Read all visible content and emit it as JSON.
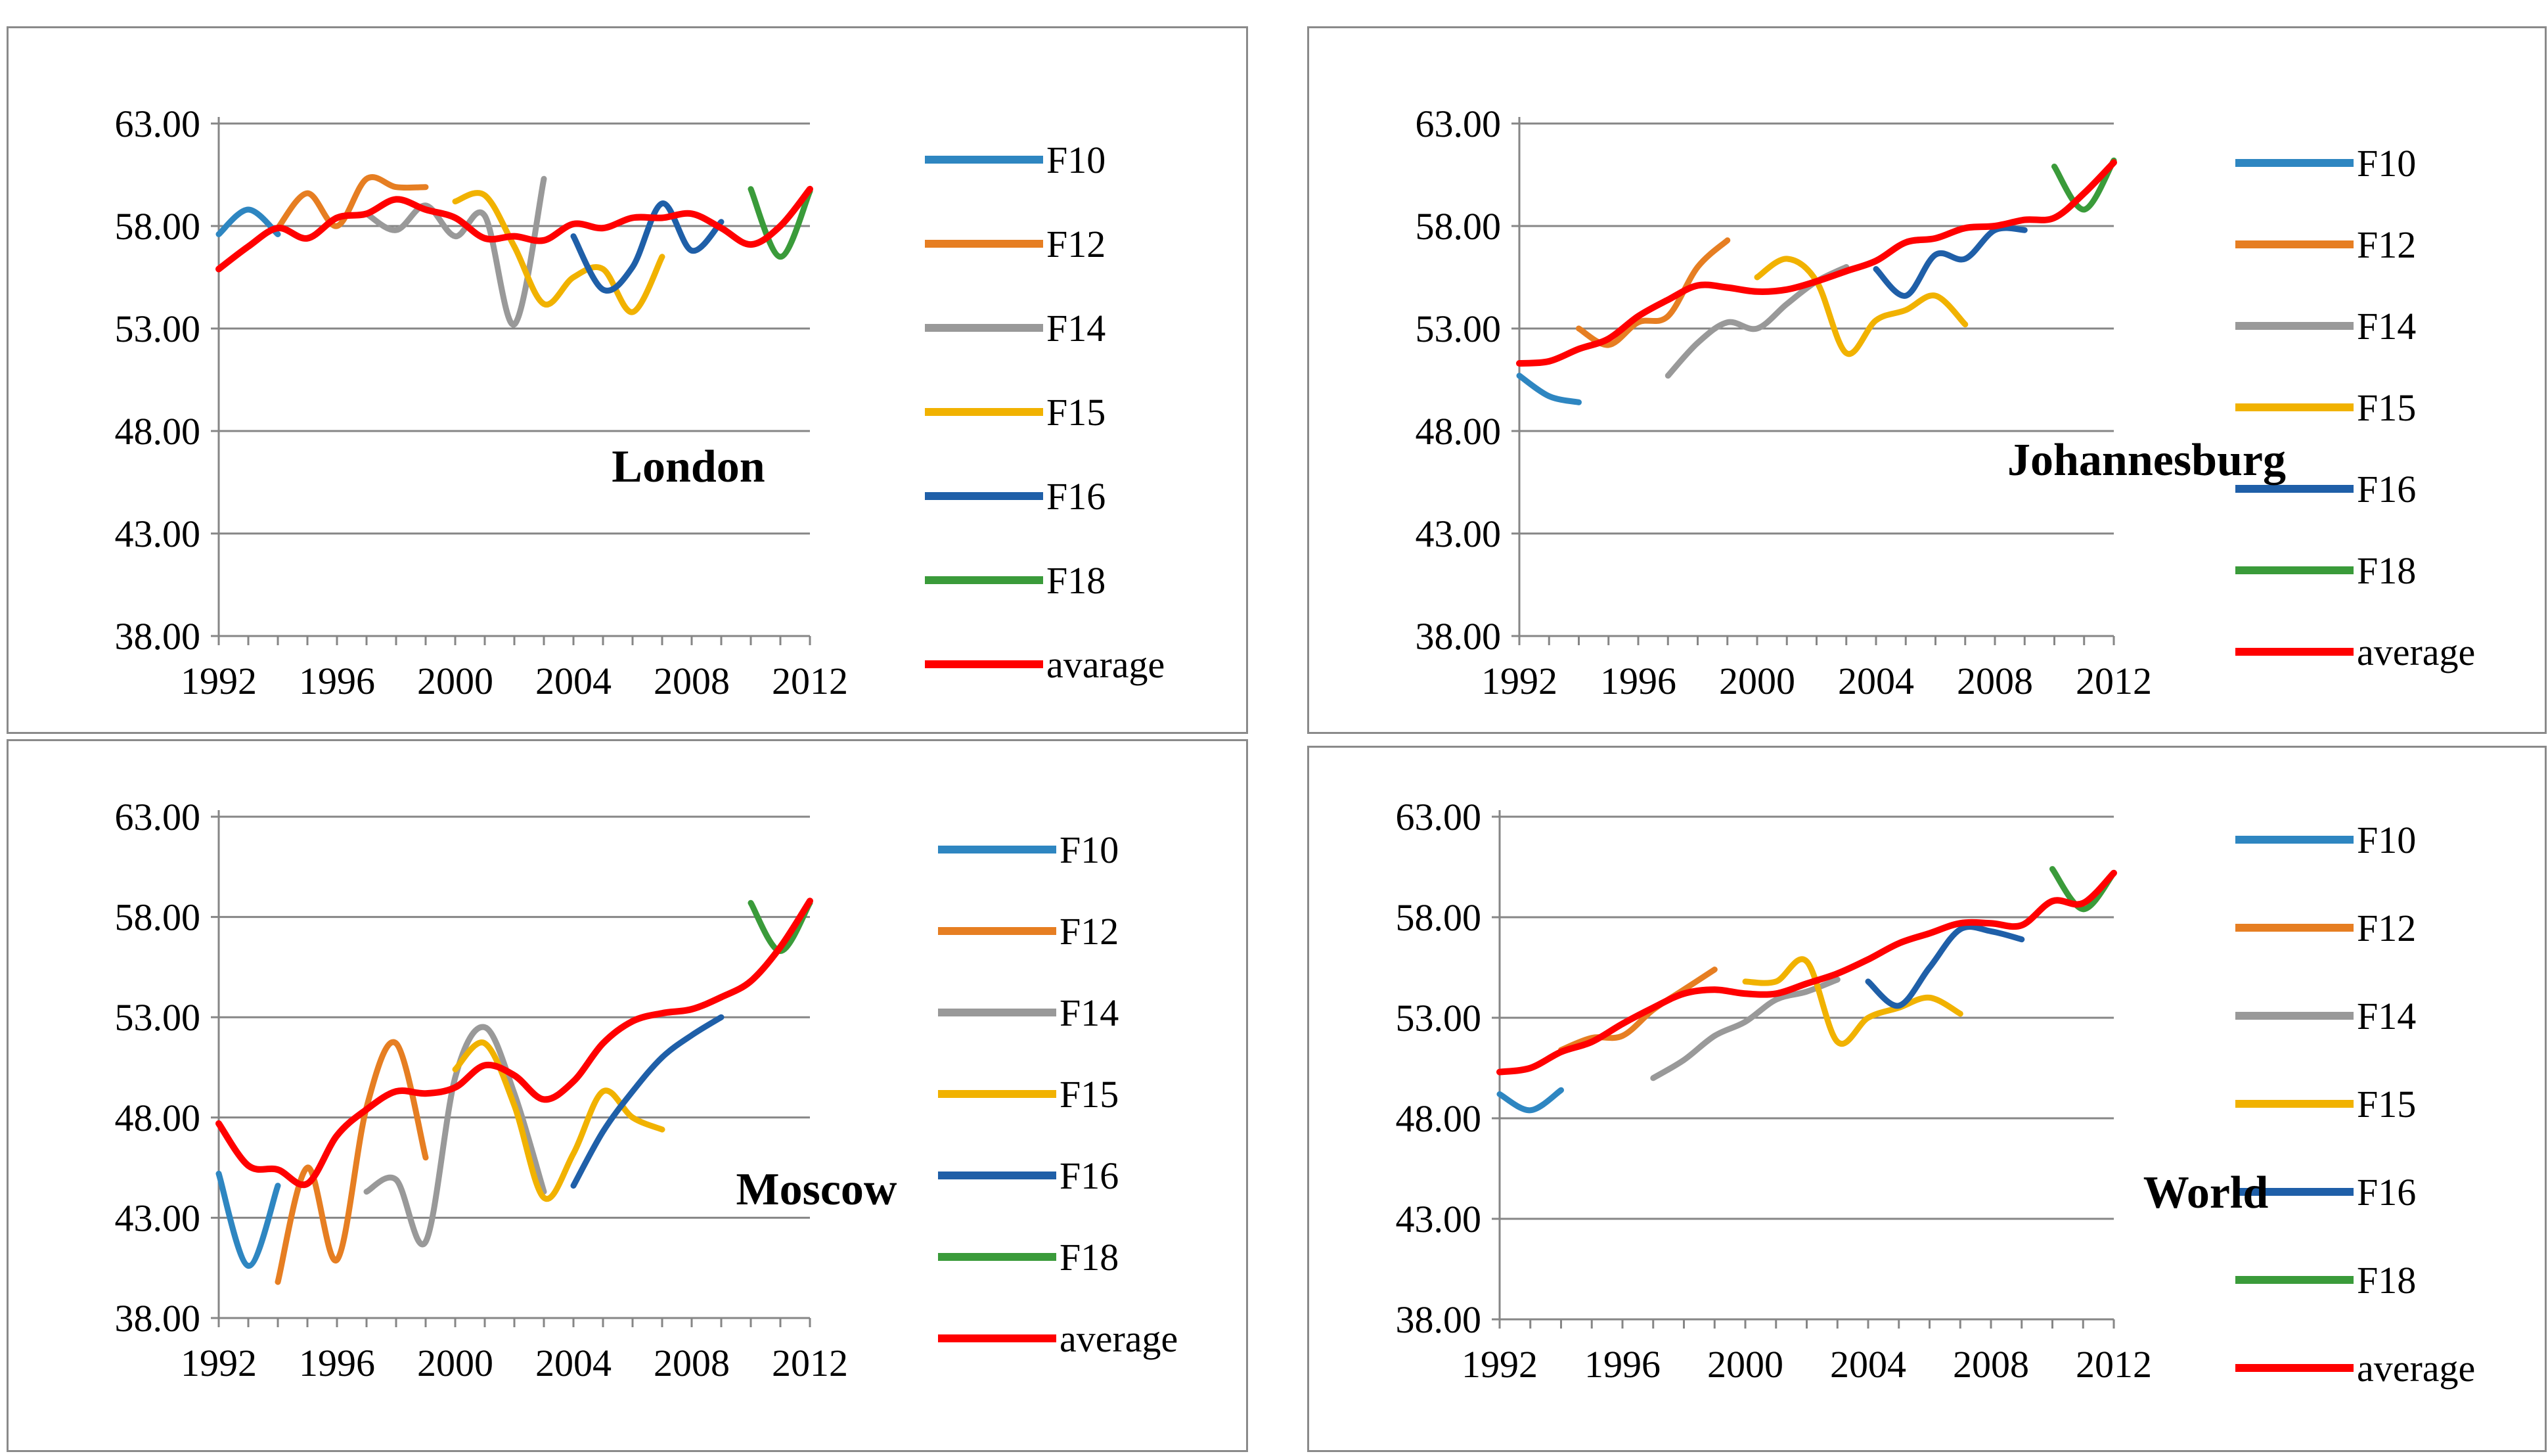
{
  "colors": {
    "F10": "#2E86C1",
    "F12": "#E67E22",
    "F14": "#999999",
    "F15": "#F1B200",
    "F16": "#1F5FA8",
    "F18": "#3A9B3A",
    "average": "#FF0000"
  },
  "chart_data": [
    {
      "type": "line",
      "title": "London",
      "xlabel": "",
      "ylabel": "",
      "ylim": [
        38,
        63
      ],
      "xlim": [
        1992,
        2012
      ],
      "xticks": [
        "1992",
        "1996",
        "2000",
        "2004",
        "2008",
        "2012"
      ],
      "yticks": [
        "38.00",
        "43.00",
        "48.00",
        "53.00",
        "58.00",
        "63.00"
      ],
      "legend": [
        "F10",
        "F12",
        "F14",
        "F15",
        "F16",
        "F18",
        "avarage"
      ],
      "series": [
        {
          "name": "F10",
          "key": "F10",
          "x": [
            1992,
            1993,
            1994
          ],
          "values": [
            57.6,
            58.8,
            57.6
          ]
        },
        {
          "name": "F12",
          "key": "F12",
          "x": [
            1994,
            1995,
            1996,
            1997,
            1998,
            1999
          ],
          "values": [
            57.9,
            59.6,
            58.0,
            60.3,
            59.9,
            59.9
          ]
        },
        {
          "name": "F14",
          "key": "F14",
          "x": [
            1997,
            1998,
            1999,
            2000,
            2001,
            2002,
            2003
          ],
          "values": [
            58.6,
            57.8,
            59.0,
            57.5,
            58.5,
            53.2,
            60.3
          ]
        },
        {
          "name": "F15",
          "key": "F15",
          "x": [
            2000,
            2001,
            2002,
            2003,
            2004,
            2005,
            2006,
            2007
          ],
          "values": [
            59.2,
            59.5,
            57.0,
            54.2,
            55.5,
            55.9,
            53.8,
            56.5
          ]
        },
        {
          "name": "F16",
          "key": "F16",
          "x": [
            2004,
            2005,
            2006,
            2007,
            2008,
            2009
          ],
          "values": [
            57.5,
            54.9,
            56.0,
            59.1,
            56.8,
            58.2
          ]
        },
        {
          "name": "F18",
          "key": "F18",
          "x": [
            2010,
            2011,
            2012
          ],
          "values": [
            59.8,
            56.5,
            59.7
          ]
        },
        {
          "name": "avarage",
          "key": "average",
          "x": [
            1992,
            1993,
            1994,
            1995,
            1996,
            1997,
            1998,
            1999,
            2000,
            2001,
            2002,
            2003,
            2004,
            2005,
            2006,
            2007,
            2008,
            2009,
            2010,
            2011,
            2012
          ],
          "values": [
            55.9,
            57.0,
            57.9,
            57.4,
            58.4,
            58.6,
            59.3,
            58.8,
            58.4,
            57.4,
            57.5,
            57.3,
            58.1,
            57.9,
            58.4,
            58.4,
            58.6,
            57.9,
            57.1,
            58.0,
            59.8
          ]
        }
      ]
    },
    {
      "type": "line",
      "title": "Johannesburg",
      "xlabel": "",
      "ylabel": "",
      "ylim": [
        38,
        63
      ],
      "xlim": [
        1992,
        2012
      ],
      "xticks": [
        "1992",
        "1996",
        "2000",
        "2004",
        "2008",
        "2012"
      ],
      "yticks": [
        "38.00",
        "43.00",
        "48.00",
        "53.00",
        "58.00",
        "63.00"
      ],
      "legend": [
        "F10",
        "F12",
        "F14",
        "F15",
        "F16",
        "F18",
        "average"
      ],
      "series": [
        {
          "name": "F10",
          "key": "F10",
          "x": [
            1992,
            1993,
            1994
          ],
          "values": [
            50.7,
            49.7,
            49.4
          ]
        },
        {
          "name": "F12",
          "key": "F12",
          "x": [
            1994,
            1995,
            1996,
            1997,
            1998,
            1999
          ],
          "values": [
            53.0,
            52.2,
            53.3,
            53.6,
            56.0,
            57.3
          ]
        },
        {
          "name": "F14",
          "key": "F14",
          "x": [
            1997,
            1998,
            1999,
            2000,
            2001,
            2002,
            2003
          ],
          "values": [
            50.7,
            52.3,
            53.3,
            53.0,
            54.2,
            55.3,
            56.0
          ]
        },
        {
          "name": "F15",
          "key": "F15",
          "x": [
            2000,
            2001,
            2002,
            2003,
            2004,
            2005,
            2006,
            2007
          ],
          "values": [
            55.5,
            56.4,
            55.3,
            51.8,
            53.4,
            53.9,
            54.6,
            53.2
          ]
        },
        {
          "name": "F16",
          "key": "F16",
          "x": [
            2004,
            2005,
            2006,
            2007,
            2008,
            2009
          ],
          "values": [
            55.9,
            54.6,
            56.6,
            56.4,
            57.8,
            57.8
          ]
        },
        {
          "name": "F18",
          "key": "F18",
          "x": [
            2010,
            2011,
            2012
          ],
          "values": [
            60.9,
            58.8,
            61.2
          ]
        },
        {
          "name": "average",
          "key": "average",
          "x": [
            1992,
            1993,
            1994,
            1995,
            1996,
            1997,
            1998,
            1999,
            2000,
            2001,
            2002,
            2003,
            2004,
            2005,
            2006,
            2007,
            2008,
            2009,
            2010,
            2011,
            2012
          ],
          "values": [
            51.3,
            51.4,
            52.0,
            52.5,
            53.6,
            54.4,
            55.1,
            55.0,
            54.8,
            54.9,
            55.3,
            55.8,
            56.3,
            57.2,
            57.4,
            57.9,
            58.0,
            58.3,
            58.4,
            59.6,
            61.1
          ]
        }
      ]
    },
    {
      "type": "line",
      "title": "Moscow",
      "xlabel": "",
      "ylabel": "",
      "ylim": [
        38,
        63
      ],
      "xlim": [
        1992,
        2012
      ],
      "xticks": [
        "1992",
        "1996",
        "2000",
        "2004",
        "2008",
        "2012"
      ],
      "yticks": [
        "38.00",
        "43.00",
        "48.00",
        "53.00",
        "58.00",
        "63.00"
      ],
      "legend": [
        "F10",
        "F12",
        "F14",
        "F15",
        "F16",
        "F18",
        "average"
      ],
      "series": [
        {
          "name": "F10",
          "key": "F10",
          "x": [
            1992,
            1993,
            1994
          ],
          "values": [
            45.2,
            40.6,
            44.6
          ]
        },
        {
          "name": "F12",
          "key": "F12",
          "x": [
            1994,
            1995,
            1996,
            1997,
            1998,
            1999
          ],
          "values": [
            39.8,
            45.5,
            40.9,
            48.5,
            51.7,
            46.0
          ]
        },
        {
          "name": "F14",
          "key": "F14",
          "x": [
            1997,
            1998,
            1999,
            2000,
            2001,
            2002,
            2003
          ],
          "values": [
            44.3,
            44.9,
            41.8,
            50.0,
            52.5,
            49.2,
            44.3
          ]
        },
        {
          "name": "F15",
          "key": "F15",
          "x": [
            2000,
            2001,
            2002,
            2003,
            2004,
            2005,
            2006,
            2007
          ],
          "values": [
            50.4,
            51.7,
            48.6,
            44.0,
            46.2,
            49.3,
            48.0,
            47.4
          ]
        },
        {
          "name": "F16",
          "key": "F16",
          "x": [
            2004,
            2005,
            2006,
            2007,
            2008,
            2009
          ],
          "values": [
            44.6,
            47.3,
            49.3,
            51.0,
            52.1,
            53.0
          ]
        },
        {
          "name": "F18",
          "key": "F18",
          "x": [
            2010,
            2011,
            2012
          ],
          "values": [
            58.7,
            56.3,
            58.7
          ]
        },
        {
          "name": "average",
          "key": "average",
          "x": [
            1992,
            1993,
            1994,
            1995,
            1996,
            1997,
            1998,
            1999,
            2000,
            2001,
            2002,
            2003,
            2004,
            2005,
            2006,
            2007,
            2008,
            2009,
            2010,
            2011,
            2012
          ],
          "values": [
            47.7,
            45.6,
            45.4,
            44.7,
            47.1,
            48.4,
            49.3,
            49.2,
            49.5,
            50.6,
            50.1,
            48.9,
            49.8,
            51.7,
            52.8,
            53.2,
            53.4,
            54.0,
            54.8,
            56.5,
            58.8
          ]
        }
      ]
    },
    {
      "type": "line",
      "title": "World",
      "xlabel": "",
      "ylabel": "",
      "ylim": [
        38,
        63
      ],
      "xlim": [
        1992,
        2012
      ],
      "xticks": [
        "1992",
        "1996",
        "2000",
        "2004",
        "2008",
        "2012"
      ],
      "yticks": [
        "38.00",
        "43.00",
        "48.00",
        "53.00",
        "58.00",
        "63.00"
      ],
      "legend": [
        "F10",
        "F12",
        "F14",
        "F15",
        "F16",
        "F18",
        "average"
      ],
      "series": [
        {
          "name": "F10",
          "key": "F10",
          "x": [
            1992,
            1993,
            1994
          ],
          "values": [
            49.2,
            48.4,
            49.4
          ]
        },
        {
          "name": "F12",
          "key": "F12",
          "x": [
            1994,
            1995,
            1996,
            1997,
            1998,
            1999
          ],
          "values": [
            51.4,
            52.0,
            52.1,
            53.4,
            54.4,
            55.4
          ]
        },
        {
          "name": "F14",
          "key": "F14",
          "x": [
            1997,
            1998,
            1999,
            2000,
            2001,
            2002,
            2003
          ],
          "values": [
            50.0,
            50.9,
            52.1,
            52.8,
            53.9,
            54.3,
            54.9
          ]
        },
        {
          "name": "F15",
          "key": "F15",
          "x": [
            2000,
            2001,
            2002,
            2003,
            2004,
            2005,
            2006,
            2007
          ],
          "values": [
            54.8,
            54.8,
            55.8,
            51.8,
            53.0,
            53.5,
            54.0,
            53.2
          ]
        },
        {
          "name": "F16",
          "key": "F16",
          "x": [
            2004,
            2005,
            2006,
            2007,
            2008,
            2009
          ],
          "values": [
            54.8,
            53.6,
            55.5,
            57.4,
            57.3,
            56.9
          ]
        },
        {
          "name": "F18",
          "key": "F18",
          "x": [
            2010,
            2011,
            2012
          ],
          "values": [
            60.4,
            58.4,
            60.2
          ]
        },
        {
          "name": "average",
          "key": "average",
          "x": [
            1992,
            1993,
            1994,
            1995,
            1996,
            1997,
            1998,
            1999,
            2000,
            2001,
            2002,
            2003,
            2004,
            2005,
            2006,
            2007,
            2008,
            2009,
            2010,
            2011,
            2012
          ],
          "values": [
            50.3,
            50.5,
            51.3,
            51.8,
            52.7,
            53.5,
            54.2,
            54.4,
            54.2,
            54.2,
            54.7,
            55.2,
            55.9,
            56.7,
            57.2,
            57.7,
            57.7,
            57.6,
            58.8,
            58.7,
            60.2
          ]
        }
      ]
    }
  ]
}
